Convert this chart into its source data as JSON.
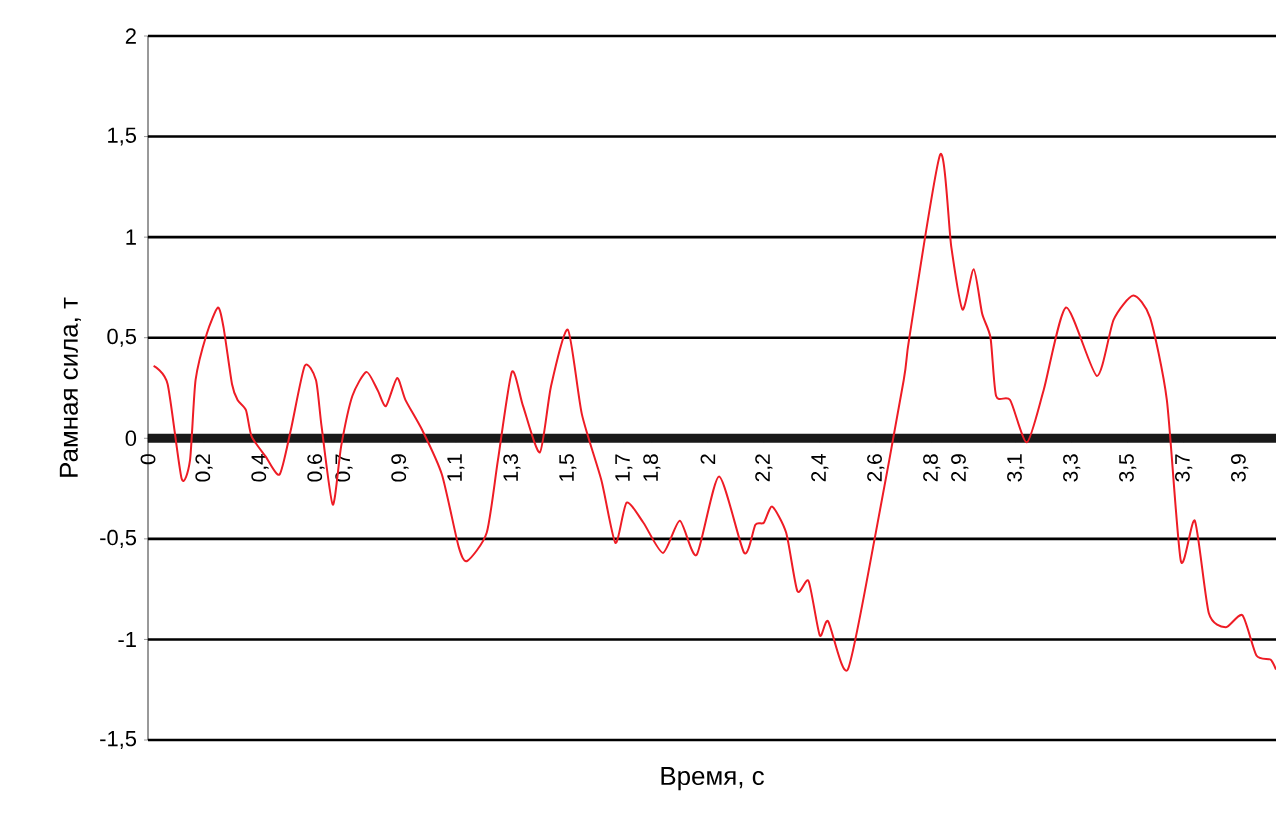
{
  "chart_data": {
    "type": "line",
    "xlabel": "Время, с",
    "ylabel": "Рамная сила, т",
    "x": [
      0.02,
      0.07,
      0.12,
      0.15,
      0.17,
      0.21,
      0.25,
      0.27,
      0.3,
      0.32,
      0.35,
      0.37,
      0.42,
      0.47,
      0.51,
      0.56,
      0.6,
      0.62,
      0.66,
      0.69,
      0.73,
      0.78,
      0.82,
      0.85,
      0.89,
      0.92,
      0.98,
      1.05,
      1.11,
      1.14,
      1.21,
      1.25,
      1.3,
      1.34,
      1.4,
      1.44,
      1.5,
      1.55,
      1.62,
      1.67,
      1.71,
      1.77,
      1.84,
      1.9,
      1.96,
      2.04,
      2.13,
      2.17,
      2.2,
      2.23,
      2.28,
      2.32,
      2.36,
      2.4,
      2.43,
      2.5,
      2.6,
      2.7,
      2.72,
      2.83,
      2.87,
      2.91,
      2.95,
      2.98,
      3.01,
      3.03,
      3.08,
      3.14,
      3.2,
      3.28,
      3.39,
      3.45,
      3.52,
      3.58,
      3.64,
      3.69,
      3.74,
      3.79,
      3.85,
      3.91,
      3.96,
      4.01,
      4.03
    ],
    "series": [
      {
        "color": "#ee1c25",
        "values": [
          0.36,
          0.27,
          -0.2,
          -0.11,
          0.29,
          0.52,
          0.65,
          0.55,
          0.27,
          0.19,
          0.14,
          0.01,
          -0.09,
          -0.18,
          0.04,
          0.36,
          0.29,
          0.06,
          -0.33,
          -0.04,
          0.21,
          0.33,
          0.24,
          0.16,
          0.3,
          0.19,
          0.04,
          -0.18,
          -0.54,
          -0.61,
          -0.47,
          -0.11,
          0.33,
          0.16,
          -0.07,
          0.26,
          0.54,
          0.12,
          -0.21,
          -0.52,
          -0.32,
          -0.42,
          -0.57,
          -0.41,
          -0.58,
          -0.19,
          -0.57,
          -0.43,
          -0.42,
          -0.34,
          -0.47,
          -0.76,
          -0.71,
          -0.98,
          -0.91,
          -1.15,
          -0.47,
          0.29,
          0.5,
          1.41,
          0.95,
          0.64,
          0.84,
          0.62,
          0.5,
          0.21,
          0.19,
          -0.02,
          0.24,
          0.65,
          0.31,
          0.59,
          0.71,
          0.6,
          0.19,
          -0.61,
          -0.41,
          -0.87,
          -0.94,
          -0.88,
          -1.08,
          -1.1,
          -1.15
        ]
      }
    ],
    "xlim": [
      0,
      4.03
    ],
    "xticks": [
      0,
      {
        "value": 0.2,
        "label": "0,2"
      },
      {
        "value": 0.4,
        "label": "0,4"
      },
      {
        "value": 0.6,
        "label": "0,6"
      },
      {
        "value": 0.7,
        "label": "0,7"
      },
      {
        "value": 0.9,
        "label": "0,9"
      },
      {
        "value": 1.1,
        "label": "1,1"
      },
      {
        "value": 1.3,
        "label": "1,3"
      },
      {
        "value": 1.5,
        "label": "1,5"
      },
      {
        "value": 1.7,
        "label": "1,7"
      },
      {
        "value": 1.8,
        "label": "1,8"
      },
      2,
      {
        "value": 2.2,
        "label": "2,2"
      },
      {
        "value": 2.4,
        "label": "2,4"
      },
      {
        "value": 2.6,
        "label": "2,6"
      },
      {
        "value": 2.8,
        "label": "2,8"
      },
      {
        "value": 2.9,
        "label": "2,9"
      },
      {
        "value": 3.1,
        "label": "3,1"
      },
      {
        "value": 3.3,
        "label": "3,3"
      },
      {
        "value": 3.5,
        "label": "3,5"
      },
      {
        "value": 3.7,
        "label": "3,7"
      },
      {
        "value": 3.9,
        "label": "3,9"
      }
    ],
    "ylim": [
      -1.5,
      2
    ],
    "yticks": [
      {
        "value": -1.5,
        "label": "-1,5"
      },
      {
        "value": -1,
        "label": "-1"
      },
      {
        "value": -0.5,
        "label": "-0,5"
      },
      0,
      {
        "value": 0.5,
        "label": "0,5"
      },
      {
        "value": 1,
        "label": "1"
      },
      {
        "value": 1.5,
        "label": "1,5"
      },
      2
    ],
    "grid": "y"
  }
}
